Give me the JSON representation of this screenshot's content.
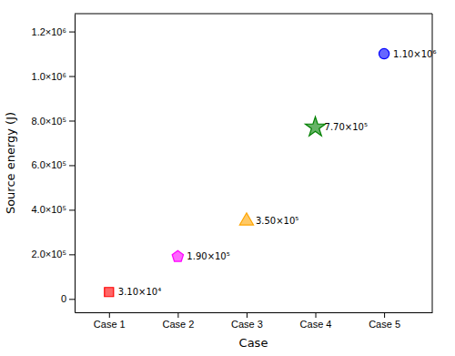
{
  "chart_data": {
    "type": "scatter",
    "xlabel": "Case",
    "ylabel": "Source energy (J)",
    "x": [
      1,
      2,
      3,
      4,
      5
    ],
    "values": [
      31000,
      190000,
      350000,
      770000,
      1100000
    ],
    "value_labels": [
      "3.10×10⁴",
      "1.90×10⁵",
      "3.50×10⁵",
      "7.70×10⁵",
      "1.10×10⁶"
    ],
    "data_labels": true,
    "colors": [
      "#ff0000",
      "#ff00ff",
      "#ffa500",
      "#008000",
      "#0000ff"
    ],
    "marker": [
      "square",
      "pentagon",
      "triangle",
      "star",
      "circle"
    ],
    "xlim": [
      0.5,
      5.7
    ],
    "xticks": [
      {
        "value": 1,
        "label": "Case 1"
      },
      {
        "value": 2,
        "label": "Case 2"
      },
      {
        "value": 3,
        "label": "Case 3"
      },
      {
        "value": 4,
        "label": "Case 4"
      },
      {
        "value": 5,
        "label": "Case 5"
      }
    ],
    "ylim": [
      -60000,
      1280000
    ],
    "yticks": [
      0,
      {
        "value": 200000,
        "label": "2.0×10⁵"
      },
      {
        "value": 400000,
        "label": "4.0×10⁵"
      },
      {
        "value": 600000,
        "label": "6.0×10⁵"
      },
      {
        "value": 800000,
        "label": "8.0×10⁵"
      },
      {
        "value": 1000000,
        "label": "1.0×10⁶"
      },
      {
        "value": 1200000,
        "label": "1.2×10⁶"
      }
    ],
    "grid": false
  }
}
